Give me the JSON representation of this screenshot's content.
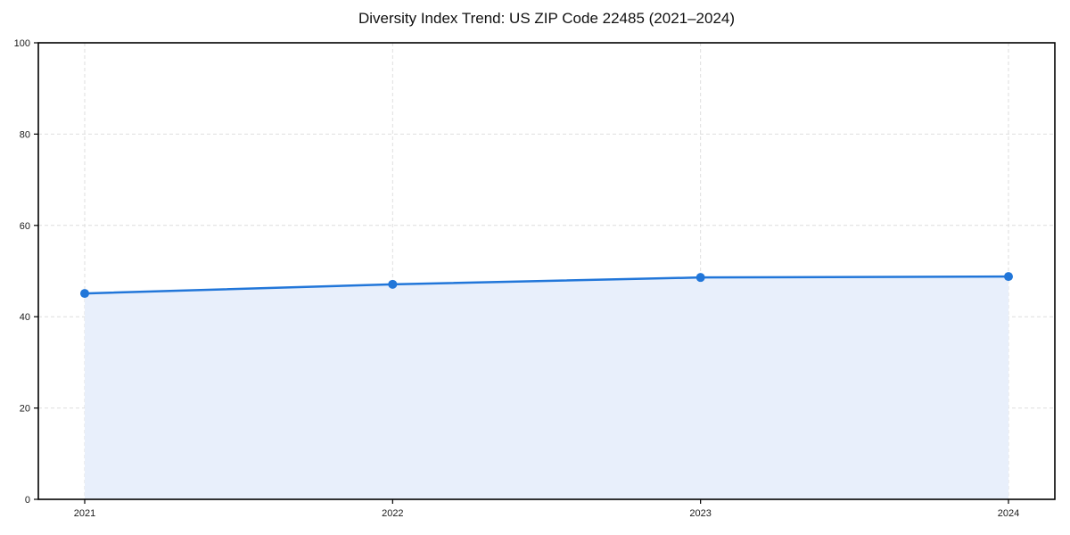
{
  "chart_data": {
    "type": "area",
    "title": "Diversity Index Trend: US ZIP Code 22485 (2021–2024)",
    "categories": [
      "2021",
      "2022",
      "2023",
      "2024"
    ],
    "series": [
      {
        "name": "Diversity Index",
        "values": [
          45.1,
          47.1,
          48.6,
          48.8
        ]
      }
    ],
    "xlabel": "",
    "ylabel": "",
    "ylim": [
      0,
      100
    ],
    "yticks": [
      0,
      20,
      40,
      60,
      80,
      100
    ],
    "ytick_labels": [
      "0",
      "20",
      "40",
      "60",
      "80",
      "100"
    ],
    "grid": "dashed both axes",
    "legend": "none",
    "colors": {
      "line": "#2176d9",
      "marker": "#2176d9",
      "area_fill": "#e8effb",
      "grid": "#dedede",
      "axis": "#000000",
      "tick_label": "#1a1a1a",
      "title": "#111111",
      "background": "#ffffff"
    }
  }
}
